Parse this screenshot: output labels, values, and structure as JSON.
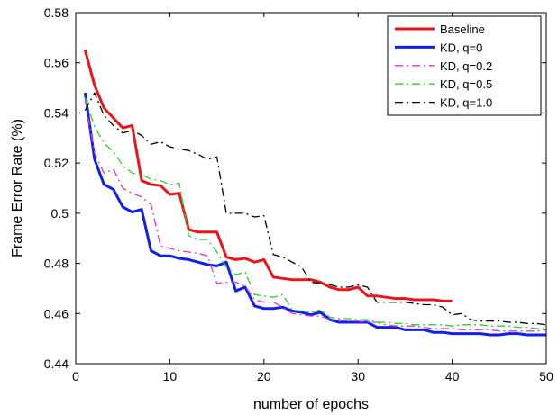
{
  "chart_data": {
    "type": "line",
    "xlabel": "number of epochs",
    "ylabel": "Frame Error Rate (%)",
    "xlim": [
      0,
      50
    ],
    "ylim": [
      0.44,
      0.58
    ],
    "xticks": [
      0,
      10,
      20,
      30,
      40,
      50
    ],
    "yticks": [
      0.44,
      0.46,
      0.48,
      0.5,
      0.52,
      0.54,
      0.56,
      0.58
    ],
    "ytick_labels": [
      "0.44",
      "0.46",
      "0.48",
      "0.5",
      "0.52",
      "0.54",
      "0.56",
      "0.58"
    ],
    "grid": false,
    "legend_position": "top-right",
    "series": [
      {
        "name": "Baseline",
        "color": "#e8161b",
        "dash": "solid",
        "x": [
          1,
          2,
          3,
          4,
          5,
          6,
          7,
          8,
          9,
          10,
          11,
          12,
          13,
          14,
          15,
          16,
          17,
          18,
          19,
          20,
          21,
          22,
          23,
          24,
          25,
          26,
          27,
          28,
          29,
          30,
          31,
          32,
          33,
          34,
          35,
          36,
          37,
          38,
          39,
          40
        ],
        "y": [
          0.565,
          0.551,
          0.542,
          0.538,
          0.534,
          0.535,
          0.513,
          0.5115,
          0.511,
          0.5075,
          0.508,
          0.4935,
          0.4925,
          0.4925,
          0.4925,
          0.4825,
          0.4815,
          0.482,
          0.4805,
          0.4815,
          0.4745,
          0.474,
          0.4735,
          0.4735,
          0.4735,
          0.4725,
          0.4705,
          0.4695,
          0.4695,
          0.4705,
          0.467,
          0.467,
          0.4665,
          0.466,
          0.466,
          0.4655,
          0.4655,
          0.4655,
          0.465,
          0.465
        ]
      },
      {
        "name": "KD, q=0",
        "color": "#1020e8",
        "dash": "solid",
        "x": [
          1,
          2,
          3,
          4,
          5,
          6,
          7,
          8,
          9,
          10,
          11,
          12,
          13,
          14,
          15,
          16,
          17,
          18,
          19,
          20,
          21,
          22,
          23,
          24,
          25,
          26,
          27,
          28,
          29,
          30,
          31,
          32,
          33,
          34,
          35,
          36,
          37,
          38,
          39,
          40,
          41,
          42,
          43,
          44,
          45,
          46,
          47,
          48,
          49,
          50
        ],
        "y": [
          0.548,
          0.5215,
          0.5115,
          0.5095,
          0.5025,
          0.5005,
          0.5015,
          0.485,
          0.483,
          0.483,
          0.482,
          0.4815,
          0.4805,
          0.4795,
          0.479,
          0.4805,
          0.469,
          0.4705,
          0.463,
          0.462,
          0.462,
          0.4625,
          0.461,
          0.4605,
          0.4595,
          0.4605,
          0.4575,
          0.4565,
          0.4565,
          0.4565,
          0.4565,
          0.4545,
          0.4545,
          0.4545,
          0.4535,
          0.4535,
          0.4535,
          0.4525,
          0.4525,
          0.452,
          0.452,
          0.452,
          0.452,
          0.4515,
          0.4515,
          0.452,
          0.452,
          0.4515,
          0.4515,
          0.4515
        ]
      },
      {
        "name": "KD, q=0.2",
        "color": "#e832e0",
        "dash": "dashdot",
        "x": [
          1,
          2,
          3,
          4,
          5,
          6,
          7,
          8,
          9,
          10,
          11,
          12,
          13,
          14,
          15,
          16,
          17,
          18,
          19,
          20,
          21,
          22,
          23,
          24,
          25,
          26,
          27,
          28,
          29,
          30,
          31,
          32,
          33,
          34,
          35,
          36,
          37,
          38,
          39,
          40,
          41,
          42,
          43,
          44,
          45,
          46,
          47,
          48,
          49,
          50
        ],
        "y": [
          0.545,
          0.524,
          0.516,
          0.5175,
          0.51,
          0.508,
          0.5065,
          0.5035,
          0.487,
          0.486,
          0.485,
          0.4845,
          0.484,
          0.483,
          0.472,
          0.4725,
          0.4725,
          0.471,
          0.4655,
          0.4645,
          0.4645,
          0.4625,
          0.46,
          0.4595,
          0.459,
          0.459,
          0.4575,
          0.4575,
          0.457,
          0.457,
          0.4565,
          0.4565,
          0.4555,
          0.455,
          0.455,
          0.455,
          0.4545,
          0.454,
          0.454,
          0.454,
          0.4535,
          0.4535,
          0.4535,
          0.4535,
          0.453,
          0.453,
          0.453,
          0.453,
          0.453,
          0.4535
        ]
      },
      {
        "name": "KD, q=0.5",
        "color": "#2ad42a",
        "dash": "dashdot",
        "x": [
          1,
          2,
          3,
          4,
          5,
          6,
          7,
          8,
          9,
          10,
          11,
          12,
          13,
          14,
          15,
          16,
          17,
          18,
          19,
          20,
          21,
          22,
          23,
          24,
          25,
          26,
          27,
          28,
          29,
          30,
          31,
          32,
          33,
          34,
          35,
          36,
          37,
          38,
          39,
          40,
          41,
          42,
          43,
          44,
          45,
          46,
          47,
          48,
          49,
          50
        ],
        "y": [
          0.546,
          0.5345,
          0.528,
          0.5245,
          0.519,
          0.516,
          0.5155,
          0.5135,
          0.513,
          0.5115,
          0.512,
          0.491,
          0.4895,
          0.4895,
          0.4845,
          0.4785,
          0.4755,
          0.4765,
          0.4675,
          0.467,
          0.4665,
          0.4675,
          0.4615,
          0.461,
          0.4605,
          0.4615,
          0.4585,
          0.458,
          0.458,
          0.4575,
          0.4575,
          0.4565,
          0.4565,
          0.456,
          0.456,
          0.4555,
          0.4555,
          0.4555,
          0.4555,
          0.455,
          0.4555,
          0.4555,
          0.4555,
          0.455,
          0.455,
          0.455,
          0.4545,
          0.4545,
          0.454,
          0.454
        ]
      },
      {
        "name": "KD, q=1.0",
        "color": "#000000",
        "dash": "dashdot",
        "x": [
          1,
          2,
          3,
          4,
          5,
          6,
          7,
          8,
          9,
          10,
          11,
          12,
          13,
          14,
          15,
          16,
          17,
          18,
          19,
          20,
          21,
          22,
          23,
          24,
          25,
          26,
          27,
          28,
          29,
          30,
          31,
          32,
          33,
          34,
          35,
          36,
          37,
          38,
          39,
          40,
          41,
          42,
          43,
          44,
          45,
          46,
          47,
          48,
          49,
          50
        ],
        "y": [
          0.541,
          0.548,
          0.539,
          0.535,
          0.532,
          0.533,
          0.531,
          0.5275,
          0.5285,
          0.5265,
          0.5255,
          0.525,
          0.5235,
          0.5215,
          0.5225,
          0.5,
          0.5,
          0.5,
          0.4985,
          0.499,
          0.4835,
          0.4825,
          0.4805,
          0.4785,
          0.4725,
          0.472,
          0.4715,
          0.4705,
          0.4705,
          0.4715,
          0.4705,
          0.4645,
          0.4645,
          0.4645,
          0.4645,
          0.464,
          0.4635,
          0.4635,
          0.4625,
          0.4595,
          0.46,
          0.4575,
          0.457,
          0.457,
          0.457,
          0.4565,
          0.4565,
          0.456,
          0.456,
          0.4555
        ]
      }
    ]
  }
}
